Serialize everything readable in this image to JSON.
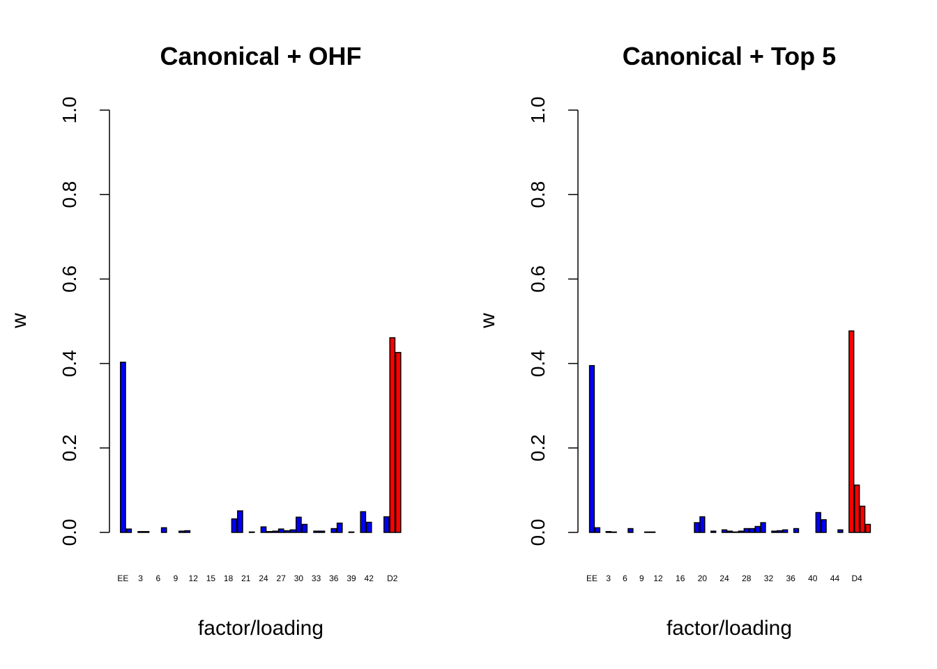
{
  "colors": {
    "blue": "#0000ff",
    "red": "#ff0000"
  },
  "chart_data": [
    {
      "type": "bar",
      "title": "Canonical + OHF",
      "xlabel": "factor/loading",
      "ylabel": "w",
      "ylim": [
        0,
        1
      ],
      "yticks": [
        "0.0",
        "0.2",
        "0.4",
        "0.6",
        "0.8",
        "1.0"
      ],
      "tick_labels": [
        {
          "index": 0,
          "label": "EE"
        },
        {
          "index": 3,
          "label": "3"
        },
        {
          "index": 6,
          "label": "6"
        },
        {
          "index": 9,
          "label": "9"
        },
        {
          "index": 12,
          "label": "12"
        },
        {
          "index": 15,
          "label": "15"
        },
        {
          "index": 18,
          "label": "18"
        },
        {
          "index": 21,
          "label": "21"
        },
        {
          "index": 24,
          "label": "24"
        },
        {
          "index": 27,
          "label": "27"
        },
        {
          "index": 30,
          "label": "30"
        },
        {
          "index": 33,
          "label": "33"
        },
        {
          "index": 36,
          "label": "36"
        },
        {
          "index": 39,
          "label": "39"
        },
        {
          "index": 42,
          "label": "42"
        },
        {
          "index": 46,
          "label": "D2"
        }
      ],
      "values": [
        0.403,
        0.008,
        0.0,
        0.002,
        0.002,
        0.0,
        0.0,
        0.011,
        0.0,
        0.0,
        0.003,
        0.004,
        0.0,
        0.0,
        0.0,
        0.0,
        0.0,
        0.0,
        0.0,
        0.032,
        0.051,
        0.0,
        0.001,
        0.0,
        0.013,
        0.002,
        0.003,
        0.008,
        0.004,
        0.006,
        0.036,
        0.019,
        0.0,
        0.003,
        0.003,
        0.0,
        0.009,
        0.022,
        0.0,
        0.001,
        0.0,
        0.049,
        0.024,
        0.0,
        0.0,
        0.037,
        0.461,
        0.426
      ],
      "red_indices": [
        46,
        47
      ]
    },
    {
      "type": "bar",
      "title": "Canonical + Top 5",
      "xlabel": "factor/loading",
      "ylabel": "w",
      "ylim": [
        0,
        1
      ],
      "yticks": [
        "0.0",
        "0.2",
        "0.4",
        "0.6",
        "0.8",
        "1.0"
      ],
      "tick_labels": [
        {
          "index": 0,
          "label": "EE"
        },
        {
          "index": 3,
          "label": "3"
        },
        {
          "index": 6,
          "label": "6"
        },
        {
          "index": 9,
          "label": "9"
        },
        {
          "index": 12,
          "label": "12"
        },
        {
          "index": 16,
          "label": "16"
        },
        {
          "index": 20,
          "label": "20"
        },
        {
          "index": 24,
          "label": "24"
        },
        {
          "index": 28,
          "label": "28"
        },
        {
          "index": 32,
          "label": "32"
        },
        {
          "index": 36,
          "label": "36"
        },
        {
          "index": 40,
          "label": "40"
        },
        {
          "index": 44,
          "label": "44"
        },
        {
          "index": 48,
          "label": "D4"
        }
      ],
      "values": [
        0.395,
        0.011,
        0.0,
        0.002,
        0.001,
        0.0,
        0.0,
        0.009,
        0.0,
        0.0,
        0.001,
        0.001,
        0.0,
        0.0,
        0.0,
        0.0,
        0.0,
        0.0,
        0.0,
        0.023,
        0.037,
        0.0,
        0.003,
        0.0,
        0.006,
        0.003,
        0.001,
        0.003,
        0.009,
        0.009,
        0.014,
        0.023,
        0.0,
        0.003,
        0.004,
        0.006,
        0.0,
        0.009,
        0.0,
        0.0,
        0.0,
        0.047,
        0.03,
        0.0,
        0.0,
        0.006,
        0.0,
        0.477,
        0.112,
        0.062,
        0.019
      ],
      "red_indices": [
        47,
        48,
        49,
        50
      ]
    }
  ]
}
